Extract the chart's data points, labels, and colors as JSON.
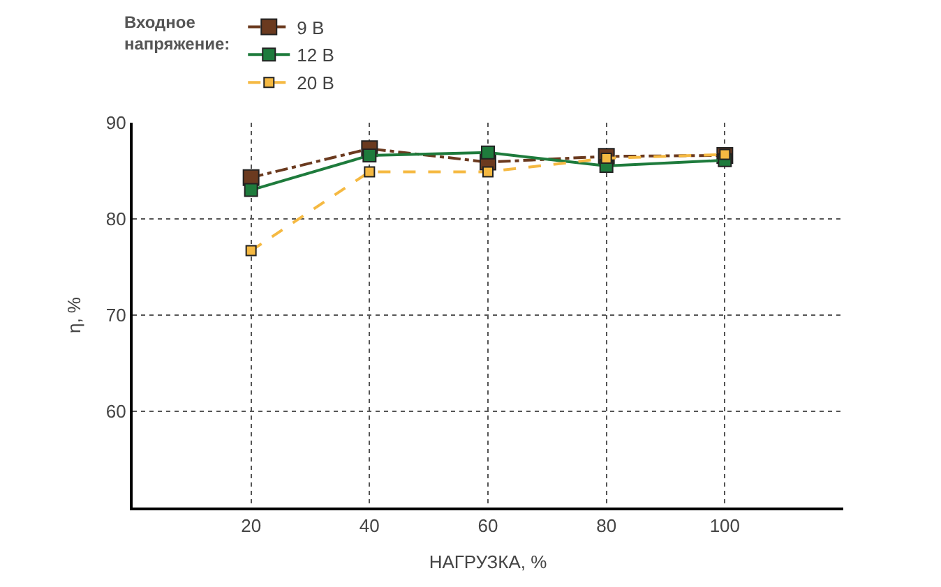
{
  "chart_data": {
    "type": "line",
    "xlabel": "НАГРУЗКА, %",
    "ylabel": "η, %",
    "legend_title": "Входное напряжение:",
    "x": [
      20,
      40,
      60,
      80,
      100
    ],
    "series": [
      {
        "name": "9 В",
        "color": "#6b3a1f",
        "line_style": "dashdot",
        "values": [
          84.3,
          87.3,
          85.9,
          86.5,
          86.6
        ]
      },
      {
        "name": "12 В",
        "color": "#1e7b3c",
        "line_style": "solid",
        "values": [
          83.0,
          86.6,
          86.9,
          85.5,
          86.1
        ]
      },
      {
        "name": "20 В",
        "color": "#f5b942",
        "line_style": "dashed",
        "values": [
          76.7,
          84.9,
          84.9,
          86.3,
          86.7
        ]
      }
    ],
    "xlim": [
      0,
      120
    ],
    "xticks": [
      20,
      40,
      60,
      80,
      100
    ],
    "ylim": [
      50,
      90
    ],
    "yticks": [
      60,
      70,
      80,
      90
    ],
    "grid": true,
    "legend": "top",
    "marker": "square"
  }
}
